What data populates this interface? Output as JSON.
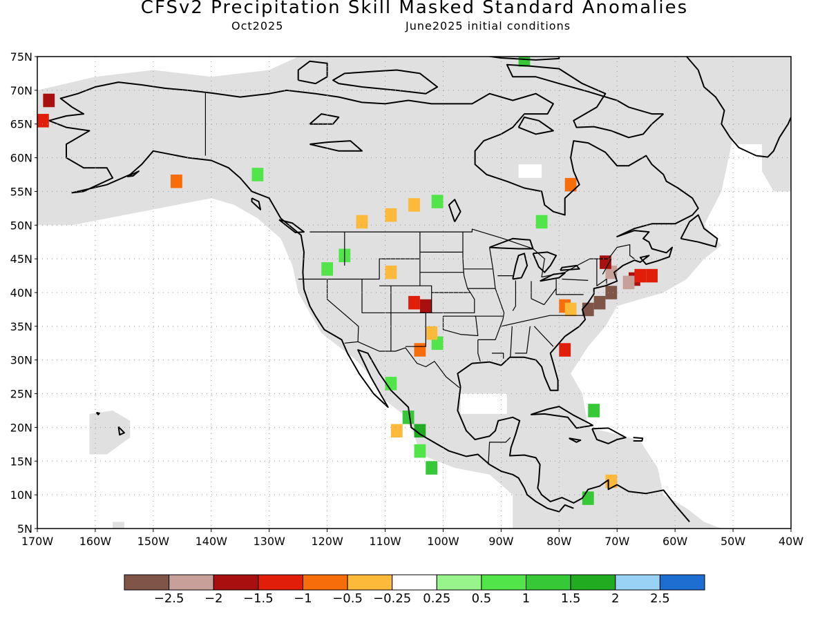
{
  "title": "CFSv2 Precipitation Skill Masked Standard Anomalies",
  "subtitle_left": "Oct2025",
  "subtitle_right": "June2025 initial conditions",
  "map": {
    "lat_min": 5,
    "lat_max": 75,
    "lon_min": -170,
    "lon_max": -40,
    "lat_labels": [
      "5N",
      "10N",
      "15N",
      "20N",
      "25N",
      "30N",
      "35N",
      "40N",
      "45N",
      "50N",
      "55N",
      "60N",
      "65N",
      "70N",
      "75N"
    ],
    "lon_labels": [
      "170W",
      "160W",
      "150W",
      "140W",
      "130W",
      "120W",
      "110W",
      "100W",
      "90W",
      "80W",
      "70W",
      "60W",
      "50W",
      "40W"
    ],
    "grid": "dotted",
    "mask_color": "#e0e0e0",
    "anomaly_patches": [
      {
        "lon": -169,
        "lat": 65.5,
        "value": -1.2
      },
      {
        "lon": -168,
        "lat": 68.5,
        "value": -1.7
      },
      {
        "lon": -146,
        "lat": 56.5,
        "value": -0.9
      },
      {
        "lon": -132,
        "lat": 57.5,
        "value": 0.9
      },
      {
        "lon": -114,
        "lat": 50.5,
        "value": -0.4
      },
      {
        "lon": -109,
        "lat": 51.5,
        "value": -0.4
      },
      {
        "lon": -105,
        "lat": 53,
        "value": -0.4
      },
      {
        "lon": -101,
        "lat": 53.5,
        "value": 0.6
      },
      {
        "lon": -103,
        "lat": 38,
        "value": -1.6
      },
      {
        "lon": -105,
        "lat": 38.5,
        "value": -1.4
      },
      {
        "lon": -109,
        "lat": 43,
        "value": -0.4
      },
      {
        "lon": -120,
        "lat": 43.5,
        "value": 0.7
      },
      {
        "lon": -117,
        "lat": 45.5,
        "value": 0.6
      },
      {
        "lon": -101,
        "lat": 32.5,
        "value": 0.9
      },
      {
        "lon": -102,
        "lat": 34,
        "value": -0.5
      },
      {
        "lon": -104,
        "lat": 31.5,
        "value": -0.9
      },
      {
        "lon": -79,
        "lat": 38,
        "value": -0.8
      },
      {
        "lon": -78,
        "lat": 37.5,
        "value": -0.5
      },
      {
        "lon": -79,
        "lat": 31.5,
        "value": -1.1
      },
      {
        "lon": -71,
        "lat": 43,
        "value": -2.1
      },
      {
        "lon": -72,
        "lat": 44.5,
        "value": -1.7
      },
      {
        "lon": -67,
        "lat": 42,
        "value": -1.7
      },
      {
        "lon": -66,
        "lat": 42.5,
        "value": -1.3
      },
      {
        "lon": -64,
        "lat": 42.5,
        "value": -1.1
      },
      {
        "lon": -68,
        "lat": 41.5,
        "value": -2.3
      },
      {
        "lon": -71,
        "lat": 40,
        "value": -2.7
      },
      {
        "lon": -73,
        "lat": 38.5,
        "value": -2.7
      },
      {
        "lon": -75,
        "lat": 37.5,
        "value": -2.7
      },
      {
        "lon": -104,
        "lat": 19.5,
        "value": 1.7
      },
      {
        "lon": -106,
        "lat": 21.5,
        "value": 1.2
      },
      {
        "lon": -108,
        "lat": 19.5,
        "value": -0.5
      },
      {
        "lon": -104,
        "lat": 16.5,
        "value": 0.6
      },
      {
        "lon": -102,
        "lat": 14,
        "value": 1.3
      },
      {
        "lon": -109,
        "lat": 26.5,
        "value": 0.6
      },
      {
        "lon": -74,
        "lat": 22.5,
        "value": 1.3
      },
      {
        "lon": -75,
        "lat": 9.5,
        "value": 1.0
      },
      {
        "lon": -71,
        "lat": 12,
        "value": -0.4
      },
      {
        "lon": -86,
        "lat": 74.5,
        "value": 1.2
      },
      {
        "lon": -83,
        "lat": 50.5,
        "value": 0.7
      },
      {
        "lon": -78,
        "lat": 56,
        "value": -0.8
      }
    ]
  },
  "colorbar": {
    "colors": [
      "#7f5548",
      "#c8a09a",
      "#a80f0f",
      "#e01e0a",
      "#f76d0a",
      "#fcb93a",
      "#ffffff",
      "#98f58c",
      "#52e54a",
      "#37c837",
      "#20ab20",
      "#98d2f5",
      "#1e6ed2"
    ],
    "tick_labels": [
      "-2.5",
      "-2",
      "-1.5",
      "-1",
      "-0.5",
      "-0.25",
      "0.25",
      "0.5",
      "1",
      "1.5",
      "2",
      "2.5"
    ]
  }
}
